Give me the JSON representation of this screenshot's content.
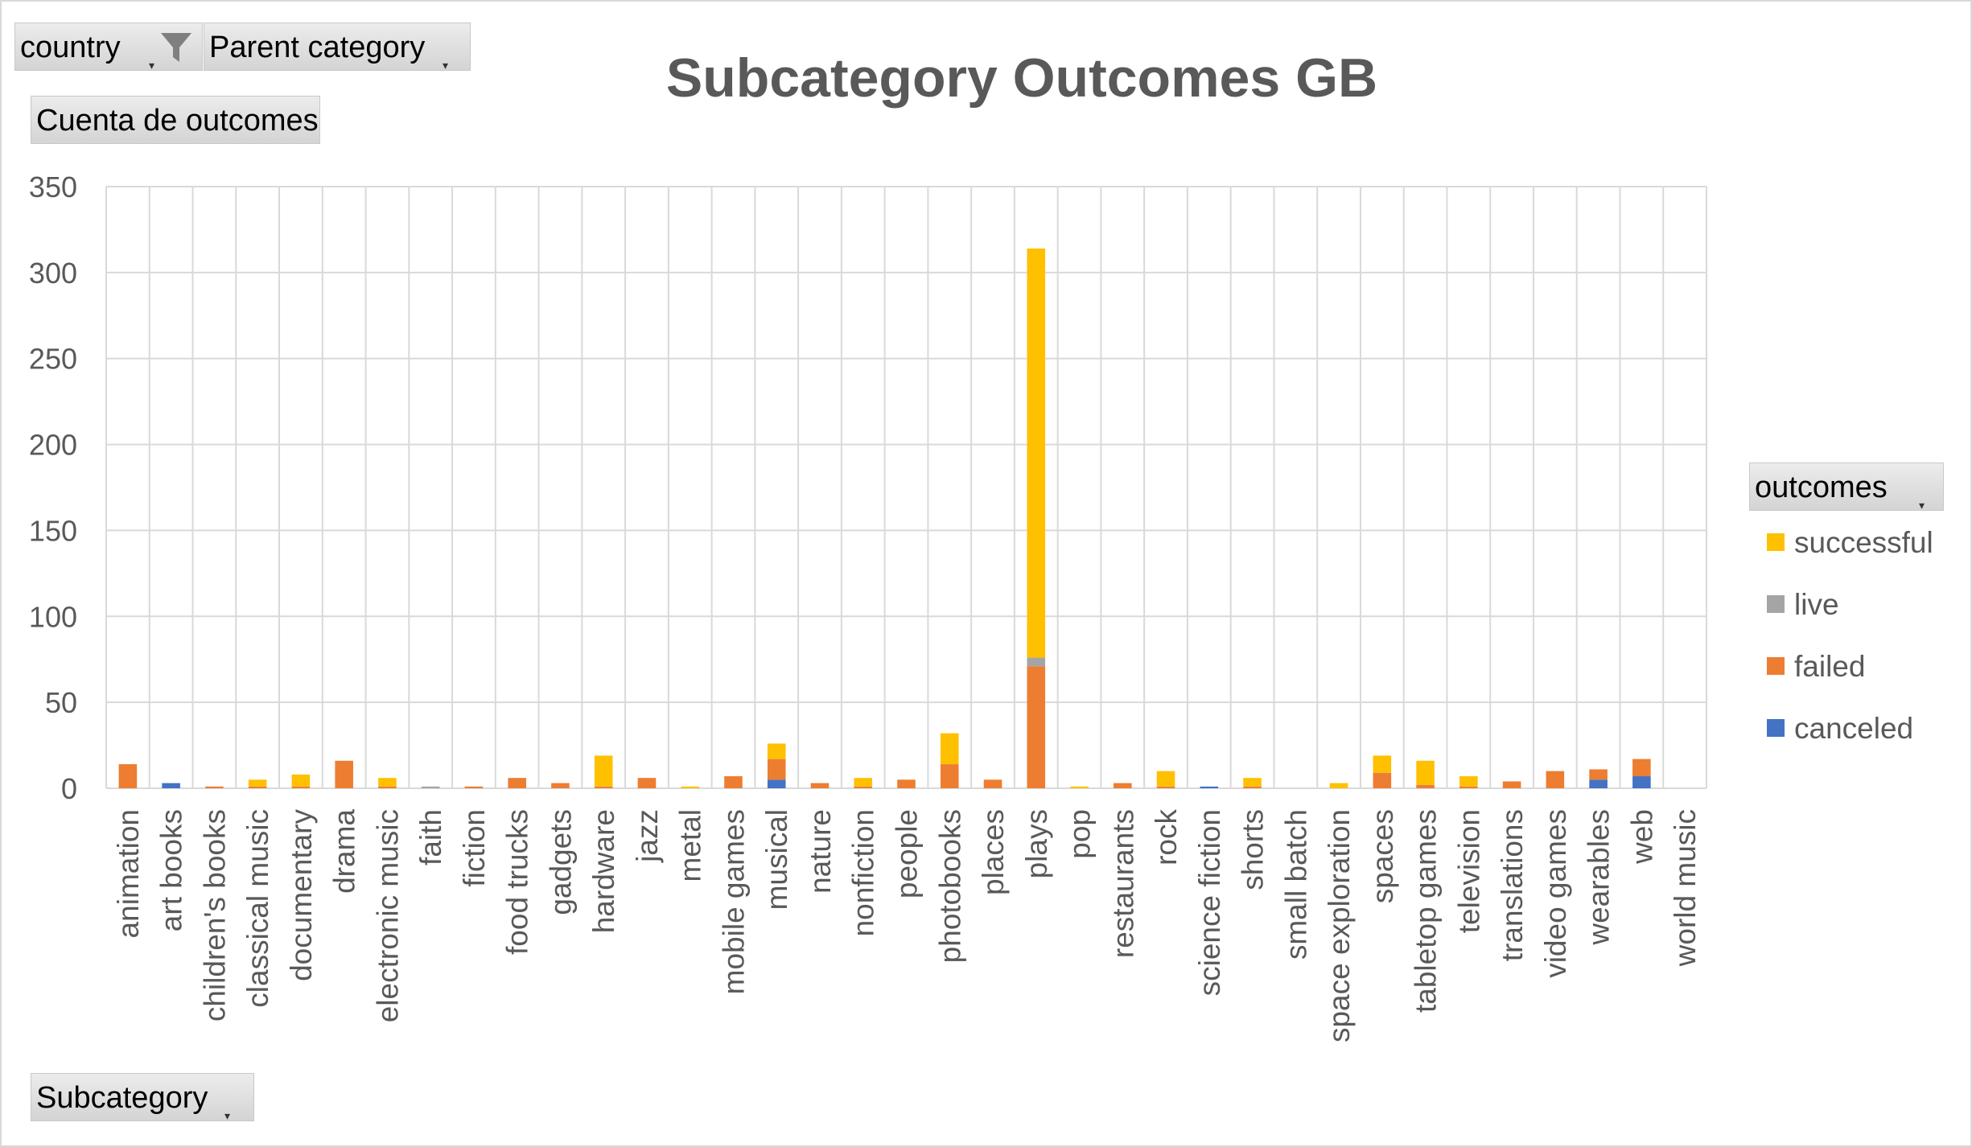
{
  "pivot": {
    "country_label": "country",
    "parent_category_label": "Parent category",
    "values_label": "Cuenta de outcomes",
    "axis_field_label": "Subcategory",
    "legend_field_label": "outcomes"
  },
  "colors": {
    "successful": "#FFC000",
    "live": "#A5A5A5",
    "failed": "#ED7D31",
    "canceled": "#4472C4",
    "grid": "#d9d9d9",
    "tick_text": "#595959"
  },
  "icons": {
    "filter": "filter-funnel-icon",
    "dropdown": "dropdown-arrow-icon"
  },
  "chart_data": {
    "type": "bar",
    "stacked": true,
    "title": "Subcategory Outcomes GB",
    "xlabel": "",
    "ylabel": "",
    "ylim": [
      0,
      350
    ],
    "yticks": [
      0,
      50,
      100,
      150,
      200,
      250,
      300,
      350
    ],
    "grid": true,
    "legend_position": "right",
    "categories": [
      "animation",
      "art books",
      "children's books",
      "classical music",
      "documentary",
      "drama",
      "electronic music",
      "faith",
      "fiction",
      "food trucks",
      "gadgets",
      "hardware",
      "jazz",
      "metal",
      "mobile games",
      "musical",
      "nature",
      "nonfiction",
      "people",
      "photobooks",
      "places",
      "plays",
      "pop",
      "restaurants",
      "rock",
      "science fiction",
      "shorts",
      "small batch",
      "space exploration",
      "spaces",
      "tabletop games",
      "television",
      "translations",
      "video games",
      "wearables",
      "web",
      "world music"
    ],
    "series": [
      {
        "name": "canceled",
        "values": [
          0,
          3,
          0,
          0,
          0,
          0,
          0,
          0,
          0,
          0,
          0,
          0,
          0,
          0,
          0,
          5,
          0,
          0,
          0,
          0,
          0,
          0,
          0,
          0,
          0,
          1,
          0,
          0,
          0,
          0,
          0,
          0,
          0,
          0,
          5,
          7,
          0
        ]
      },
      {
        "name": "failed",
        "values": [
          14,
          0,
          1,
          1,
          1,
          16,
          1,
          0,
          1,
          6,
          3,
          1,
          6,
          0,
          7,
          12,
          3,
          1,
          5,
          14,
          5,
          71,
          0,
          3,
          1,
          0,
          1,
          0,
          0,
          9,
          2,
          1,
          4,
          10,
          6,
          10,
          0
        ]
      },
      {
        "name": "live",
        "values": [
          0,
          0,
          0,
          0,
          0,
          0,
          0,
          1,
          0,
          0,
          0,
          0,
          0,
          0,
          0,
          0,
          0,
          0,
          0,
          0,
          0,
          5,
          0,
          0,
          0,
          0,
          0,
          0,
          0,
          0,
          0,
          0,
          0,
          0,
          0,
          0,
          0
        ]
      },
      {
        "name": "successful",
        "values": [
          0,
          0,
          0,
          4,
          7,
          0,
          5,
          0,
          0,
          0,
          0,
          18,
          0,
          1,
          0,
          9,
          0,
          5,
          0,
          18,
          0,
          238,
          1,
          0,
          9,
          0,
          5,
          0,
          3,
          10,
          14,
          6,
          0,
          0,
          0,
          0,
          0
        ]
      }
    ],
    "legend_order": [
      "successful",
      "live",
      "failed",
      "canceled"
    ]
  }
}
